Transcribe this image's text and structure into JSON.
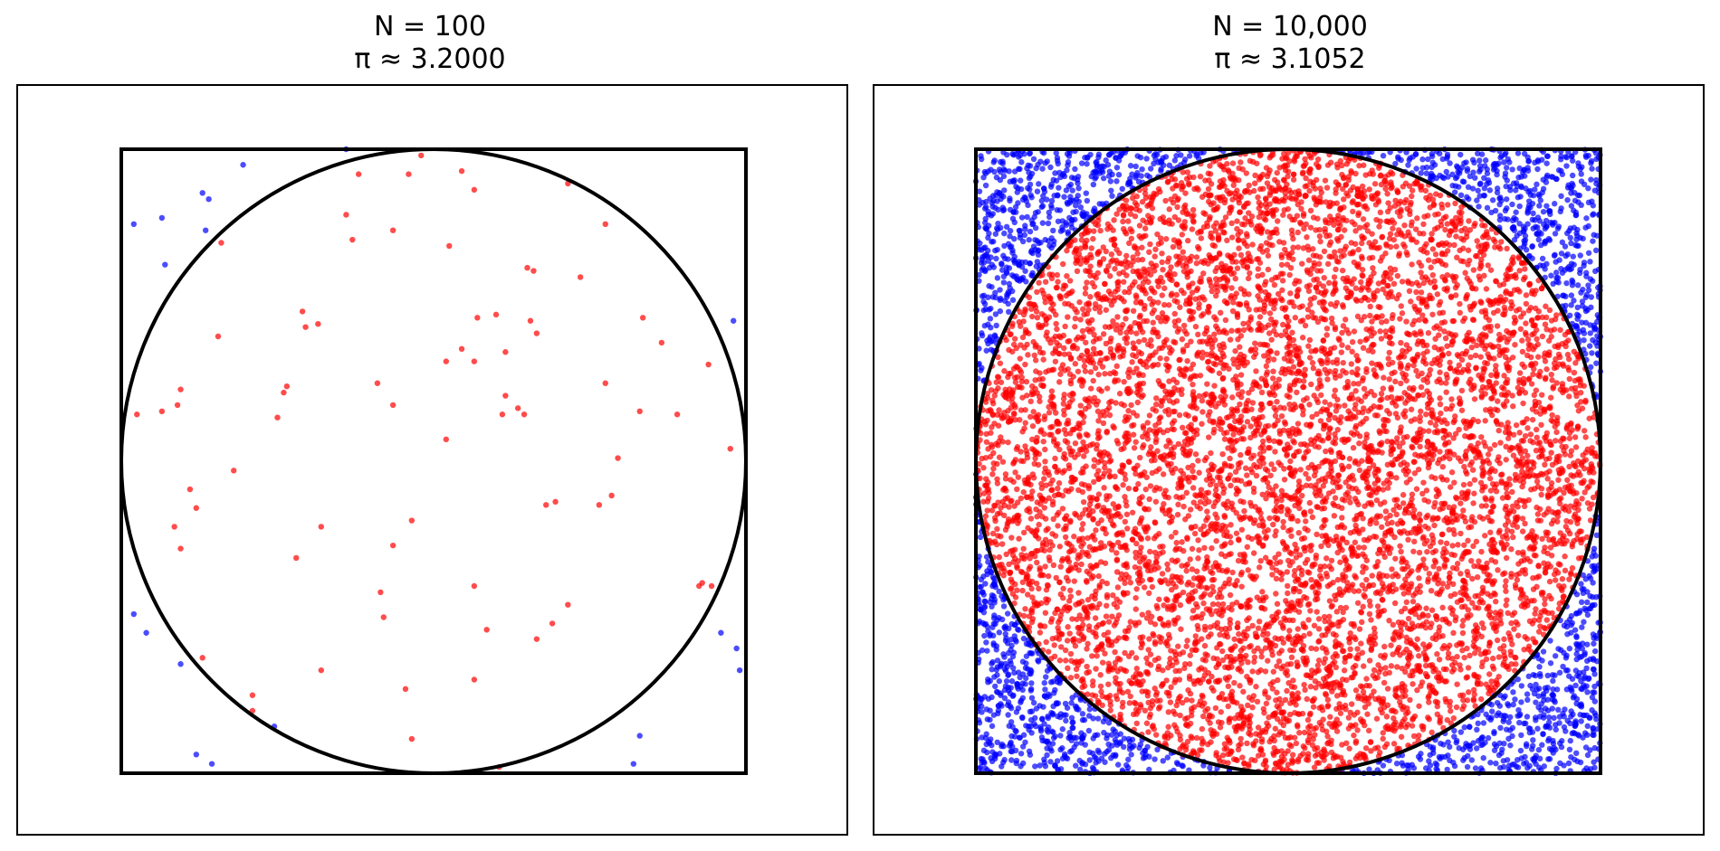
{
  "chart_data": [
    {
      "type": "scatter",
      "title_line1": "N = 100",
      "title_line2": "π ≈ 3.2000",
      "n": 100,
      "pi_estimate": 3.2,
      "inside_count": 80,
      "xlim": [
        -1.0,
        1.0
      ],
      "ylim": [
        -1.0,
        1.0
      ],
      "axes_visible": false,
      "grid": false,
      "legend": false,
      "square": {
        "x": [
          -1,
          1
        ],
        "y": [
          -1,
          1
        ]
      },
      "circle": {
        "center": [
          0,
          0
        ],
        "radius": 1
      },
      "inside_color": "#ff0000",
      "outside_color": "#0000ff",
      "series": [
        {
          "label": "inside",
          "color": "#ff0000",
          "points": [
            [
              -0.24,
              0.92
            ],
            [
              -0.08,
              0.92
            ],
            [
              0.09,
              0.93
            ],
            [
              0.13,
              0.87
            ],
            [
              0.43,
              0.89
            ],
            [
              0.55,
              0.76
            ],
            [
              -0.28,
              0.79
            ],
            [
              -0.26,
              0.71
            ],
            [
              -0.13,
              0.74
            ],
            [
              0.05,
              0.69
            ],
            [
              -0.68,
              0.7
            ],
            [
              0.3,
              0.62
            ],
            [
              0.32,
              0.61
            ],
            [
              0.47,
              0.59
            ],
            [
              -0.42,
              0.48
            ],
            [
              -0.41,
              0.43
            ],
            [
              -0.37,
              0.44
            ],
            [
              0.14,
              0.46
            ],
            [
              0.2,
              0.47
            ],
            [
              0.31,
              0.45
            ],
            [
              0.33,
              0.41
            ],
            [
              0.67,
              0.46
            ],
            [
              0.73,
              0.38
            ],
            [
              -0.69,
              0.4
            ],
            [
              0.09,
              0.36
            ],
            [
              0.04,
              0.32
            ],
            [
              0.13,
              0.32
            ],
            [
              0.23,
              0.35
            ],
            [
              0.55,
              0.25
            ],
            [
              0.88,
              0.31
            ],
            [
              -0.95,
              0.15
            ],
            [
              -0.87,
              0.16
            ],
            [
              -0.81,
              0.23
            ],
            [
              -0.82,
              0.18
            ],
            [
              -0.47,
              0.24
            ],
            [
              -0.48,
              0.22
            ],
            [
              -0.5,
              0.14
            ],
            [
              -0.18,
              0.25
            ],
            [
              -0.13,
              0.18
            ],
            [
              0.23,
              0.21
            ],
            [
              0.27,
              0.17
            ],
            [
              0.22,
              0.15
            ],
            [
              0.29,
              0.15
            ],
            [
              0.66,
              0.16
            ],
            [
              0.78,
              0.15
            ],
            [
              0.04,
              0.07
            ],
            [
              0.95,
              0.04
            ],
            [
              0.59,
              0.01
            ],
            [
              -0.64,
              -0.03
            ],
            [
              -0.78,
              -0.09
            ],
            [
              0.57,
              -0.11
            ],
            [
              0.53,
              -0.14
            ],
            [
              -0.76,
              -0.15
            ],
            [
              0.36,
              -0.14
            ],
            [
              0.39,
              -0.13
            ],
            [
              -0.83,
              -0.21
            ],
            [
              -0.07,
              -0.19
            ],
            [
              -0.36,
              -0.21
            ],
            [
              -0.13,
              -0.27
            ],
            [
              -0.81,
              -0.28
            ],
            [
              -0.44,
              -0.31
            ],
            [
              0.85,
              -0.4
            ],
            [
              0.86,
              -0.39
            ],
            [
              0.89,
              -0.4
            ],
            [
              -0.17,
              -0.42
            ],
            [
              0.13,
              -0.4
            ],
            [
              0.43,
              -0.46
            ],
            [
              0.38,
              -0.52
            ],
            [
              -0.16,
              -0.5
            ],
            [
              0.17,
              -0.54
            ],
            [
              0.33,
              -0.57
            ],
            [
              -0.74,
              -0.63
            ],
            [
              -0.36,
              -0.67
            ],
            [
              -0.09,
              -0.73
            ],
            [
              0.13,
              -0.7
            ],
            [
              -0.58,
              -0.75
            ],
            [
              -0.58,
              -0.8
            ],
            [
              -0.07,
              -0.89
            ],
            [
              0.21,
              -0.98
            ],
            [
              -0.04,
              0.98
            ]
          ]
        },
        {
          "label": "outside",
          "color": "#0000ff",
          "points": [
            [
              -0.61,
              0.95
            ],
            [
              -0.74,
              0.86
            ],
            [
              -0.72,
              0.84
            ],
            [
              -0.87,
              0.78
            ],
            [
              -0.96,
              0.76
            ],
            [
              -0.73,
              0.74
            ],
            [
              -0.86,
              0.63
            ],
            [
              0.96,
              0.45
            ],
            [
              -0.96,
              -0.49
            ],
            [
              -0.92,
              -0.55
            ],
            [
              -0.81,
              -0.65
            ],
            [
              0.92,
              -0.55
            ],
            [
              0.97,
              -0.6
            ],
            [
              0.98,
              -0.67
            ],
            [
              -0.51,
              -0.85
            ],
            [
              0.66,
              -0.88
            ],
            [
              -0.76,
              -0.94
            ],
            [
              -0.71,
              -0.97
            ],
            [
              0.64,
              -0.97
            ],
            [
              -0.28,
              1.0
            ]
          ]
        }
      ]
    },
    {
      "type": "scatter",
      "title_line1": "N = 10,000",
      "title_line2": "π ≈ 3.1052",
      "n": 10000,
      "pi_estimate": 3.1052,
      "inside_count": 7763,
      "xlim": [
        -1.0,
        1.0
      ],
      "ylim": [
        -1.0,
        1.0
      ],
      "axes_visible": false,
      "grid": false,
      "legend": false,
      "square": {
        "x": [
          -1,
          1
        ],
        "y": [
          -1,
          1
        ]
      },
      "circle": {
        "center": [
          0,
          0
        ],
        "radius": 1
      },
      "inside_color": "#ff0000",
      "outside_color": "#0000ff",
      "sampling": "uniform random over the square [-1,1]×[-1,1]"
    }
  ]
}
